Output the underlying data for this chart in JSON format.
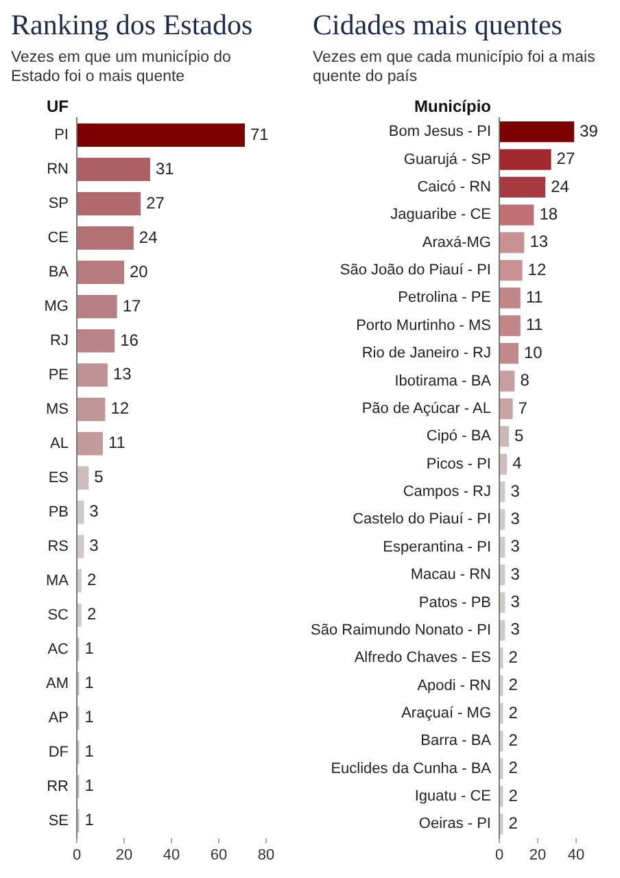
{
  "chart_data": [
    {
      "type": "bar",
      "orientation": "horizontal",
      "title": "Ranking dos Estados",
      "subtitle": "Vezes em que um município do Estado foi o mais quente",
      "ylabel": "UF",
      "categories": [
        "PI",
        "RN",
        "SP",
        "CE",
        "BA",
        "MG",
        "RJ",
        "PE",
        "MS",
        "AL",
        "ES",
        "PB",
        "RS",
        "MA",
        "SC",
        "AC",
        "AM",
        "AP",
        "DF",
        "RR",
        "SE"
      ],
      "values": [
        71,
        31,
        27,
        24,
        20,
        17,
        16,
        13,
        12,
        11,
        5,
        3,
        3,
        2,
        2,
        1,
        1,
        1,
        1,
        1,
        1
      ],
      "colors": [
        "#7d0000",
        "#ad6064",
        "#b06a6d",
        "#b27275",
        "#b57b7e",
        "#b78084",
        "#b98487",
        "#bf9294",
        "#c09597",
        "#c29a9b",
        "#ccbcbd",
        "#cfc9c9",
        "#cfc9c9",
        "#cccccc",
        "#cccccc",
        "#bdbdbd",
        "#bdbdbd",
        "#bdbdbd",
        "#bdbdbd",
        "#bdbdbd",
        "#bdbdbd"
      ],
      "xlim": [
        0,
        80
      ],
      "xticks": [
        0,
        20,
        40,
        60,
        80
      ],
      "data_labels": true
    },
    {
      "type": "bar",
      "orientation": "horizontal",
      "title": "Cidades mais quentes",
      "subtitle": "Vezes em que cada município foi a mais quente do país",
      "ylabel": "Município",
      "categories": [
        "Bom Jesus - PI",
        "Guarujá - SP",
        "Caicó - RN",
        "Jaguaribe - CE",
        "Araxá-MG",
        "São João do Piauí - PI",
        "Petrolina - PE",
        "Porto Murtinho - MS",
        "Rio de Janeiro - RJ",
        "Ibotirama - BA",
        "Pão de Açúcar - AL",
        "Cipó - BA",
        "Picos - PI",
        "Campos - RJ",
        "Castelo do Piauí - PI",
        "Esperantina - PI",
        "Macau - RN",
        "Patos - PB",
        "São Raimundo Nonato - PI",
        "Alfredo Chaves - ES",
        "Apodi - RN",
        "Araçuaí - MG",
        "Barra - BA",
        "Euclides da Cunha - BA",
        "Iguatu - CE",
        "Oeiras - PI"
      ],
      "values": [
        39,
        27,
        24,
        18,
        13,
        12,
        11,
        11,
        10,
        8,
        7,
        5,
        4,
        3,
        3,
        3,
        3,
        3,
        3,
        2,
        2,
        2,
        2,
        2,
        2,
        2
      ],
      "colors": [
        "#7d0000",
        "#a0282e",
        "#a63a40",
        "#be7072",
        "#c79092",
        "#c89294",
        "#c08688",
        "#c08688",
        "#c08a8c",
        "#c8a0a2",
        "#c9a4a5",
        "#cdb6b7",
        "#cfbdbe",
        "#d0c9c9",
        "#d0c9c9",
        "#d0c9c9",
        "#d0c9c9",
        "#d0c9c9",
        "#d0c9c9",
        "#cccccc",
        "#cccccc",
        "#cccccc",
        "#cccccc",
        "#cccccc",
        "#cccccc",
        "#cccccc"
      ],
      "xlim": [
        0,
        40
      ],
      "xticks": [
        0,
        20,
        40
      ],
      "data_labels": true
    }
  ]
}
